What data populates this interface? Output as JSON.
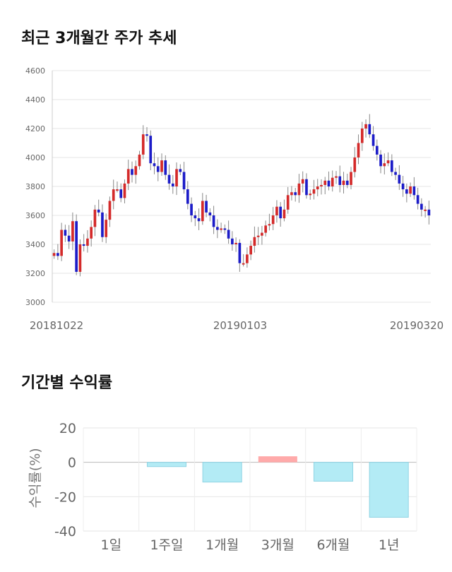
{
  "page": {
    "section1_title": "최근 3개월간 주가 추세",
    "section2_title": "기간별 수익률"
  },
  "colors": {
    "up": "#d42a2a",
    "down": "#1c1cc8",
    "positive_bar": "#ffaaaa",
    "negative_bar": "#b3ebf5",
    "negative_bar_border": "#8fd3e3"
  },
  "chart_data": [
    {
      "type": "candlestick",
      "title": "최근 3개월간 주가 추세",
      "ylim": [
        3000,
        4600
      ],
      "yticks": [
        "3000",
        "3200",
        "3400",
        "3600",
        "3800",
        "4000",
        "4200",
        "4400",
        "4600"
      ],
      "xtick_labels": [
        "20181022",
        "20190103",
        "20190320"
      ],
      "grid": true,
      "closes": [
        3340,
        3320,
        3500,
        3460,
        3420,
        3560,
        3210,
        3400,
        3390,
        3440,
        3520,
        3640,
        3620,
        3450,
        3570,
        3700,
        3780,
        3780,
        3720,
        3820,
        3920,
        3880,
        3940,
        4020,
        4160,
        4150,
        3960,
        3940,
        3900,
        3980,
        3880,
        3820,
        3800,
        3920,
        3900,
        3780,
        3680,
        3600,
        3580,
        3560,
        3700,
        3620,
        3600,
        3520,
        3500,
        3510,
        3500,
        3440,
        3400,
        3410,
        3270,
        3270,
        3330,
        3390,
        3450,
        3460,
        3480,
        3530,
        3540,
        3600,
        3660,
        3580,
        3640,
        3740,
        3760,
        3740,
        3820,
        3850,
        3740,
        3750,
        3780,
        3800,
        3810,
        3840,
        3800,
        3860,
        3870,
        3810,
        3840,
        3810,
        3900,
        4000,
        4100,
        4200,
        4230,
        4160,
        4080,
        4020,
        3940,
        3960,
        3980,
        3900,
        3880,
        3820,
        3780,
        3750,
        3800,
        3740,
        3680,
        3640,
        3640,
        3600
      ]
    },
    {
      "type": "bar",
      "title": "기간별 수익률",
      "ylabel": "수익률(%)",
      "categories": [
        "1일",
        "1주일",
        "1개월",
        "3개월",
        "6개월",
        "1년"
      ],
      "values": [
        0,
        -2.5,
        -11.5,
        3.5,
        -11,
        -32
      ],
      "ylim": [
        -40,
        20
      ],
      "yticks": [
        "-40",
        "-20",
        "0",
        "20"
      ],
      "grid": true
    }
  ]
}
